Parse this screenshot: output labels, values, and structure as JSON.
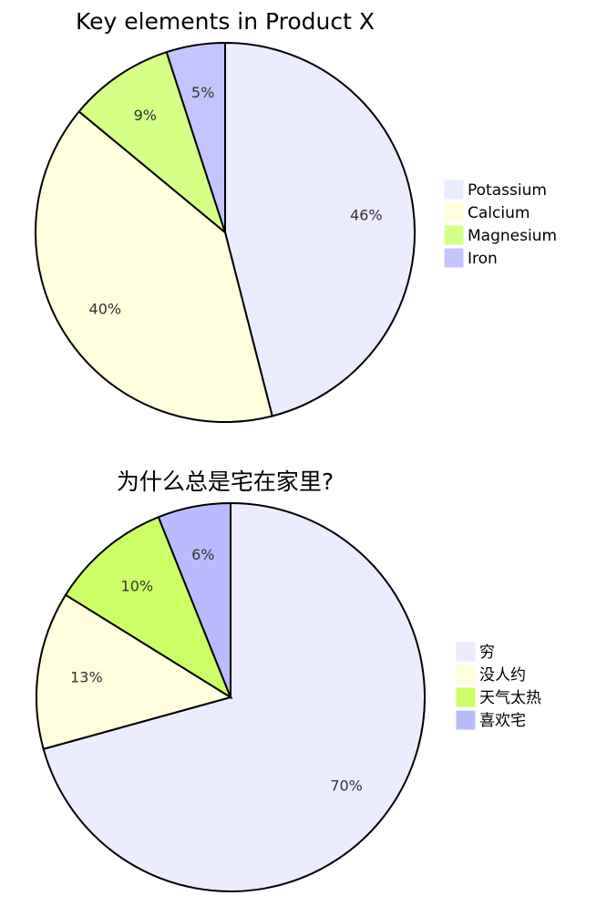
{
  "chart_data": [
    {
      "type": "pie",
      "title": "Key elements in Product X",
      "legend_position": "right",
      "slices": [
        {
          "label": "Potassium",
          "value": 46,
          "display": "46%",
          "color": "#ececff"
        },
        {
          "label": "Calcium",
          "value": 40,
          "display": "40%",
          "color": "#ffffde"
        },
        {
          "label": "Magnesium",
          "value": 9,
          "display": "9%",
          "color": "#d6ff85"
        },
        {
          "label": "Iron",
          "value": 5,
          "display": "5%",
          "color": "#c4c4ff"
        }
      ]
    },
    {
      "type": "pie",
      "title": "为什么总是宅在家里?",
      "legend_position": "right",
      "slices": [
        {
          "label": "穷",
          "value": 70,
          "display": "70%",
          "color": "#ececff"
        },
        {
          "label": "没人约",
          "value": 13,
          "display": "13%",
          "color": "#ffffde"
        },
        {
          "label": "天气太热",
          "value": 10,
          "display": "10%",
          "color": "#ccff66"
        },
        {
          "label": "喜欢宅",
          "value": 6,
          "display": "6%",
          "color": "#babaff"
        }
      ]
    }
  ]
}
